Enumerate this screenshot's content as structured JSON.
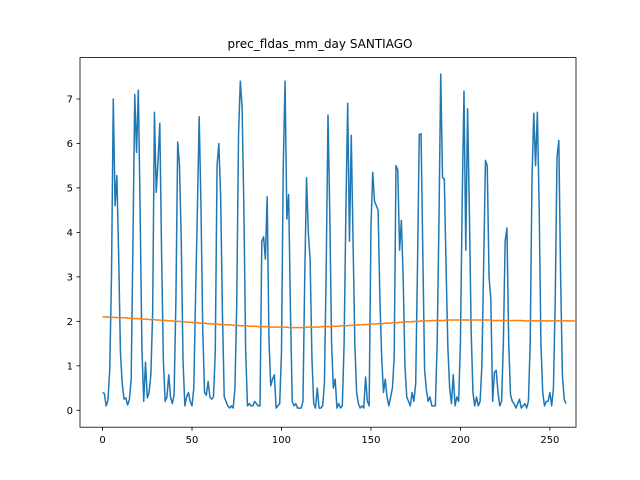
{
  "chart_data": {
    "type": "line",
    "title": "prec_fldas_mm_day SANTIAGO",
    "xlabel": "",
    "ylabel": "",
    "xlim": [
      -12.6,
      264.6
    ],
    "ylim": [
      -0.38,
      7.93
    ],
    "xticks": [
      0,
      50,
      100,
      150,
      200,
      250
    ],
    "yticks": [
      0,
      1,
      2,
      3,
      4,
      5,
      6,
      7
    ],
    "grid": false,
    "colors": {
      "series_0": "#1f77b4",
      "series_1": "#ff7f0e"
    },
    "series": [
      {
        "values": [
          0.4,
          0.38,
          0.1,
          0.22,
          0.9,
          3.0,
          7.0,
          4.6,
          5.28,
          3.5,
          1.3,
          0.6,
          0.25,
          0.28,
          0.12,
          0.24,
          0.7,
          3.8,
          7.1,
          5.8,
          7.2,
          4.5,
          1.4,
          0.2,
          1.08,
          0.28,
          0.4,
          0.8,
          2.2,
          6.7,
          4.9,
          5.6,
          6.45,
          3.5,
          1.1,
          0.2,
          0.3,
          0.8,
          0.3,
          0.15,
          0.35,
          2.5,
          6.03,
          5.5,
          3.8,
          1.1,
          0.1,
          0.3,
          0.4,
          0.2,
          0.1,
          0.5,
          2.6,
          4.5,
          6.6,
          4.6,
          1.8,
          0.4,
          0.34,
          0.65,
          0.3,
          0.25,
          0.3,
          1.3,
          5.5,
          6.0,
          4.8,
          2.2,
          0.3,
          0.2,
          0.1,
          0.05,
          0.1,
          0.05,
          0.5,
          2.4,
          6.2,
          7.4,
          6.8,
          4.5,
          1.3,
          0.1,
          0.15,
          0.1,
          0.1,
          0.2,
          0.15,
          0.1,
          0.1,
          3.8,
          3.9,
          3.4,
          4.8,
          1.6,
          0.55,
          0.7,
          0.8,
          0.05,
          0.1,
          0.15,
          1.3,
          5.5,
          7.4,
          4.3,
          4.85,
          2.3,
          0.2,
          0.1,
          0.15,
          0.05,
          0.05,
          0.05,
          0.2,
          3.0,
          5.23,
          4.0,
          3.4,
          1.2,
          0.15,
          0.05,
          0.5,
          0.05,
          0.05,
          0.1,
          0.6,
          3.2,
          6.64,
          4.4,
          1.5,
          0.5,
          0.7,
          0.05,
          0.15,
          0.05,
          0.1,
          1.5,
          4.5,
          6.9,
          3.8,
          6.18,
          3.8,
          1.5,
          0.4,
          0.15,
          0.05,
          0.1,
          0.05,
          0.75,
          0.2,
          0.1,
          4.1,
          5.35,
          4.7,
          4.6,
          4.5,
          2.5,
          1.2,
          0.4,
          0.7,
          0.3,
          0.1,
          0.3,
          0.5,
          1.2,
          5.5,
          5.4,
          3.6,
          4.27,
          3.0,
          1.0,
          0.3,
          0.2,
          0.1,
          0.4,
          0.2,
          0.6,
          3.2,
          6.2,
          6.22,
          3.5,
          0.9,
          0.45,
          0.2,
          0.3,
          0.1,
          0.1,
          0.1,
          1.5,
          4.2,
          7.56,
          5.23,
          5.2,
          3.2,
          1.4,
          0.5,
          0.15,
          0.8,
          0.1,
          0.3,
          0.2,
          1.5,
          4.7,
          7.18,
          3.6,
          6.78,
          4.5,
          1.8,
          0.4,
          0.1,
          0.3,
          0.1,
          0.2,
          1.0,
          3.3,
          5.62,
          5.5,
          3.0,
          2.5,
          0.2,
          0.85,
          0.9,
          0.4,
          0.1,
          0.2,
          1.5,
          3.8,
          4.1,
          1.5,
          0.35,
          0.2,
          0.15,
          0.05,
          0.15,
          0.25,
          0.05,
          0.1,
          0.15,
          0.05,
          0.2,
          1.5,
          5.2,
          6.68,
          5.5,
          6.7,
          4.6,
          1.5,
          0.4,
          0.1,
          0.2,
          0.2,
          0.4,
          0.1,
          0.5,
          2.5,
          5.7,
          6.07,
          3.0,
          0.8,
          0.25,
          0.15
        ]
      },
      {
        "values": [
          2.1,
          2.1,
          2.1,
          2.1,
          2.09,
          2.09,
          2.09,
          2.09,
          2.09,
          2.08,
          2.08,
          2.08,
          2.08,
          2.08,
          2.07,
          2.07,
          2.07,
          2.07,
          2.06,
          2.06,
          2.06,
          2.06,
          2.05,
          2.05,
          2.05,
          2.05,
          2.04,
          2.04,
          2.04,
          2.04,
          2.03,
          2.03,
          2.03,
          2.02,
          2.02,
          2.02,
          2.02,
          2.01,
          2.01,
          2.01,
          2.0,
          2.0,
          2.0,
          2.0,
          1.99,
          1.99,
          1.99,
          1.98,
          1.98,
          1.98,
          1.98,
          1.97,
          1.97,
          1.97,
          1.96,
          1.96,
          1.96,
          1.96,
          1.95,
          1.95,
          1.95,
          1.94,
          1.94,
          1.94,
          1.94,
          1.93,
          1.93,
          1.93,
          1.93,
          1.92,
          1.92,
          1.92,
          1.92,
          1.91,
          1.91,
          1.91,
          1.91,
          1.9,
          1.9,
          1.9,
          1.9,
          1.9,
          1.89,
          1.89,
          1.89,
          1.89,
          1.89,
          1.88,
          1.88,
          1.88,
          1.88,
          1.88,
          1.88,
          1.87,
          1.87,
          1.87,
          1.87,
          1.87,
          1.87,
          1.87,
          1.87,
          1.87,
          1.87,
          1.87,
          1.86,
          1.86,
          1.86,
          1.86,
          1.86,
          1.86,
          1.86,
          1.86,
          1.86,
          1.87,
          1.87,
          1.87,
          1.87,
          1.87,
          1.87,
          1.87,
          1.87,
          1.87,
          1.88,
          1.88,
          1.88,
          1.88,
          1.88,
          1.88,
          1.89,
          1.89,
          1.89,
          1.89,
          1.89,
          1.9,
          1.9,
          1.9,
          1.9,
          1.9,
          1.91,
          1.91,
          1.91,
          1.91,
          1.92,
          1.92,
          1.92,
          1.92,
          1.93,
          1.93,
          1.93,
          1.93,
          1.94,
          1.94,
          1.94,
          1.94,
          1.95,
          1.95,
          1.95,
          1.95,
          1.96,
          1.96,
          1.96,
          1.96,
          1.97,
          1.97,
          1.97,
          1.97,
          1.98,
          1.98,
          1.98,
          1.98,
          1.99,
          1.99,
          1.99,
          1.99,
          2.0,
          2.0,
          2.0,
          2.0,
          2.01,
          2.01,
          2.01,
          2.01,
          2.01,
          2.01,
          2.02,
          2.02,
          2.02,
          2.02,
          2.02,
          2.02,
          2.02,
          2.02,
          2.03,
          2.03,
          2.03,
          2.03,
          2.03,
          2.03,
          2.03,
          2.03,
          2.03,
          2.03,
          2.03,
          2.03,
          2.03,
          2.03,
          2.03,
          2.03,
          2.03,
          2.03,
          2.03,
          2.03,
          2.03,
          2.03,
          2.03,
          2.03,
          2.03,
          2.03,
          2.02,
          2.02,
          2.02,
          2.02,
          2.02,
          2.02,
          2.02,
          2.02,
          2.02,
          2.02,
          2.02,
          2.02,
          2.02,
          2.02,
          2.02,
          2.02,
          2.02,
          2.01,
          2.01,
          2.01,
          2.01,
          2.01,
          2.01,
          2.01,
          2.01,
          2.01,
          2.01,
          2.01,
          2.01,
          2.01,
          2.01,
          2.01,
          2.01,
          2.01,
          2.01,
          2.01,
          2.01,
          2.01,
          2.01,
          2.01,
          2.01,
          2.01,
          2.01,
          2.01,
          2.01,
          2.01,
          2.01
        ]
      }
    ]
  }
}
